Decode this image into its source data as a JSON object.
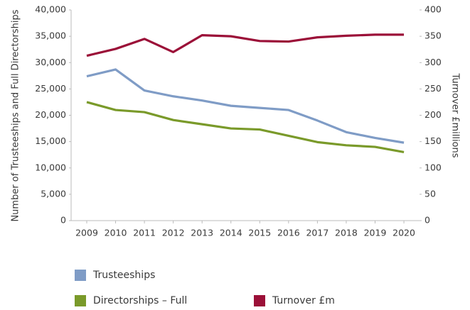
{
  "chart_data": {
    "type": "line",
    "categories": [
      "2009",
      "2010",
      "2011",
      "2012",
      "2013",
      "2014",
      "2015",
      "2016",
      "2017",
      "2018",
      "2019",
      "2020"
    ],
    "ylabel": "Number of Trusteeships and Full Directorships",
    "y2label": "Turnover £millions",
    "ylim": [
      0,
      40000
    ],
    "yticks": [
      0,
      {
        "value": 5000,
        "label": "5,000"
      },
      {
        "value": 10000,
        "label": "10,000"
      },
      {
        "value": 15000,
        "label": "15,000"
      },
      {
        "value": 20000,
        "label": "20,000"
      },
      {
        "value": 25000,
        "label": "25,000"
      },
      {
        "value": 30000,
        "label": "30,000"
      },
      {
        "value": 35000,
        "label": "35,000"
      },
      {
        "value": 40000,
        "label": "40,000"
      }
    ],
    "y2lim": [
      0,
      400
    ],
    "y2ticks": [
      0,
      50,
      100,
      150,
      200,
      250,
      300,
      350,
      400
    ],
    "series": [
      {
        "name": "Trusteeships",
        "color": "#7f9cc6",
        "values": [
          27400,
          28700,
          24700,
          23600,
          22800,
          21800,
          21400,
          21000,
          19000,
          16800,
          15700,
          14800
        ]
      },
      {
        "name": "Directorships – Full",
        "color": "#7a9a2a",
        "values": [
          22500,
          21000,
          20600,
          19100,
          18300,
          17500,
          17300,
          16100,
          14900,
          14300,
          14000,
          13000
        ]
      },
      {
        "name": "Turnover £m",
        "color": "#9b1038",
        "axis": "y2",
        "values": [
          313,
          326,
          345,
          320,
          352,
          350,
          341,
          340,
          348,
          351,
          353,
          353
        ]
      }
    ]
  }
}
